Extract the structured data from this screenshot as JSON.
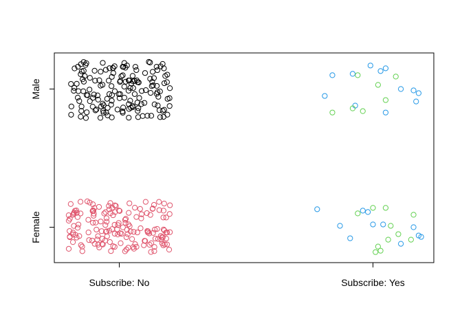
{
  "chart_data": {
    "type": "scatter",
    "x_categories": [
      "Subscribe: No",
      "Subscribe: Yes"
    ],
    "y_categories": [
      "Female",
      "Male"
    ],
    "colors": {
      "male_no": "#000000",
      "female_no": "#DF536B",
      "yes_blue": "#2297E6",
      "yes_green": "#61D04F"
    },
    "groups": [
      {
        "subscribe": "Subscribe: No",
        "gender": "Male",
        "color": "#000000",
        "jitter": {
          "x": [
            -0.2,
            0.2
          ],
          "y": [
            -0.21,
            0.2
          ]
        },
        "count": 160
      },
      {
        "subscribe": "Subscribe: No",
        "gender": "Female",
        "color": "#DF536B",
        "jitter": {
          "x": [
            -0.2,
            0.2
          ],
          "y": [
            -0.18,
            0.19
          ]
        },
        "count": 165
      },
      {
        "subscribe": "Subscribe: Yes",
        "gender": "Male",
        "color": "#2297E6",
        "points": [
          [
            -0.16,
            0.1
          ],
          [
            -0.08,
            0.11
          ],
          [
            -0.01,
            0.17
          ],
          [
            0.03,
            0.13
          ],
          [
            0.05,
            0.15
          ],
          [
            0.11,
            0.0
          ],
          [
            0.16,
            -0.01
          ],
          [
            0.18,
            -0.03
          ],
          [
            0.17,
            -0.09
          ],
          [
            0.05,
            -0.17
          ],
          [
            -0.07,
            -0.12
          ],
          [
            -0.19,
            -0.05
          ]
        ]
      },
      {
        "subscribe": "Subscribe: Yes",
        "gender": "Male",
        "color": "#61D04F",
        "points": [
          [
            -0.06,
            0.1
          ],
          [
            0.02,
            0.03
          ],
          [
            0.09,
            0.09
          ],
          [
            0.05,
            -0.08
          ],
          [
            -0.04,
            -0.16
          ],
          [
            -0.08,
            -0.14
          ],
          [
            -0.16,
            -0.17
          ]
        ]
      },
      {
        "subscribe": "Subscribe: Yes",
        "gender": "Female",
        "color": "#2297E6",
        "points": [
          [
            -0.22,
            0.13
          ],
          [
            -0.13,
            0.01
          ],
          [
            -0.09,
            -0.08
          ],
          [
            -0.02,
            0.11
          ],
          [
            0.0,
            0.02
          ],
          [
            0.04,
            0.02
          ],
          [
            0.16,
            0.0
          ],
          [
            0.18,
            -0.06
          ],
          [
            0.19,
            -0.07
          ],
          [
            0.11,
            -0.12
          ],
          [
            -0.04,
            0.12
          ]
        ]
      },
      {
        "subscribe": "Subscribe: Yes",
        "gender": "Female",
        "color": "#61D04F",
        "points": [
          [
            -0.06,
            0.1
          ],
          [
            0.0,
            0.14
          ],
          [
            0.05,
            0.14
          ],
          [
            0.16,
            0.09
          ],
          [
            0.07,
            0.01
          ],
          [
            0.06,
            -0.09
          ],
          [
            0.1,
            -0.05
          ],
          [
            0.02,
            -0.14
          ],
          [
            0.01,
            -0.18
          ],
          [
            0.03,
            -0.17
          ],
          [
            0.15,
            -0.09
          ]
        ]
      }
    ],
    "xlim": [
      0.5,
      2.25
    ],
    "ylim": [
      0.75,
      2.26
    ],
    "grid": false,
    "legend": "none",
    "title": "",
    "xlabel": "",
    "ylabel": ""
  }
}
